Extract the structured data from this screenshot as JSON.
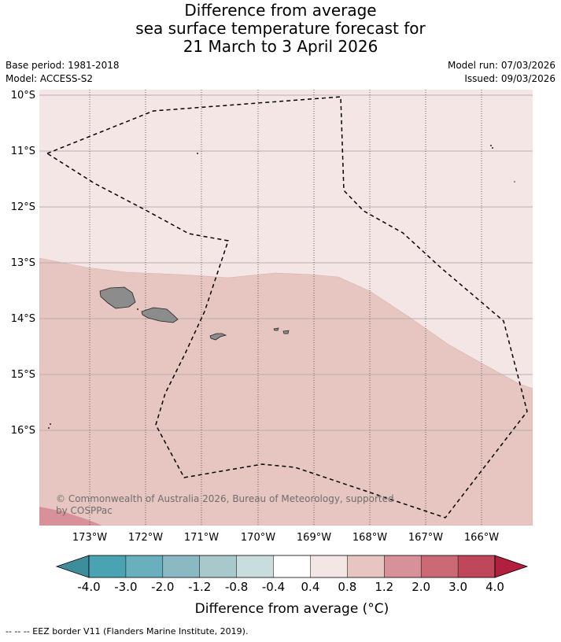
{
  "header": {
    "title_line1": "Difference from average",
    "title_line2": "sea surface temperature forecast for",
    "title_line3": "21 March to 3 April 2026",
    "base_period": "Base period: 1981-2018",
    "model": "Model: ACCESS-S2",
    "model_run": "Model run: 07/03/2026",
    "issued": "Issued: 09/03/2026"
  },
  "map": {
    "lat_labels": [
      "10°S",
      "11°S",
      "12°S",
      "13°S",
      "14°S",
      "15°S",
      "16°S"
    ],
    "lon_labels": [
      "173°W",
      "172°W",
      "171°W",
      "170°W",
      "169°W",
      "168°W",
      "167°W",
      "166°W"
    ],
    "copyright_line1": "© Commonwealth of Australia 2026, Bureau of Meteorology, supported",
    "copyright_line2": "by COSPPac",
    "land_color": "#8c8c8c",
    "colors": {
      "band_0_4_0_8": "#f4e6e5",
      "band_0_8_1_2": "#e7c6c1",
      "band_1_2_2_0": "#d89198"
    }
  },
  "colorbar": {
    "tick_labels": [
      "-4.0",
      "-3.0",
      "-2.0",
      "-1.2",
      "-0.8",
      "-0.4",
      "0.4",
      "0.8",
      "1.2",
      "2.0",
      "3.0",
      "4.0"
    ],
    "colors": [
      "#3e8d9b",
      "#4aa3b3",
      "#6aafbe",
      "#8bb9c3",
      "#a9c8cc",
      "#c9dcde",
      "#ffffff",
      "#f4e6e5",
      "#e7c6c1",
      "#d89198",
      "#cb6a76",
      "#be4759",
      "#b1203e"
    ],
    "label": "Difference from average (°C)"
  },
  "legend": {
    "eez_text": "--  --  -- EEZ border V11 (Flanders Marine Institute, 2019)."
  }
}
